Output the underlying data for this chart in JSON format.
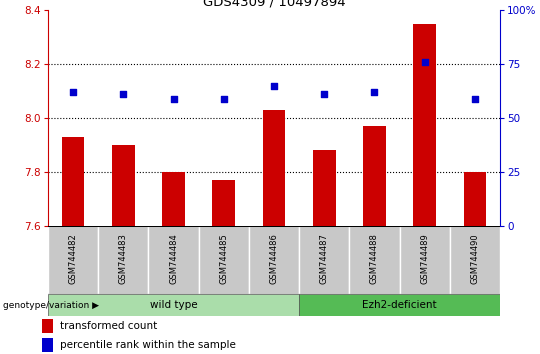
{
  "title": "GDS4309 / 10497894",
  "samples": [
    "GSM744482",
    "GSM744483",
    "GSM744484",
    "GSM744485",
    "GSM744486",
    "GSM744487",
    "GSM744488",
    "GSM744489",
    "GSM744490"
  ],
  "transformed_counts": [
    7.93,
    7.9,
    7.8,
    7.77,
    8.03,
    7.88,
    7.97,
    8.35,
    7.8
  ],
  "percentile_ranks": [
    62,
    61,
    59,
    59,
    65,
    61,
    62,
    76,
    59
  ],
  "ylim_left": [
    7.6,
    8.4
  ],
  "ylim_right": [
    0,
    100
  ],
  "yticks_left": [
    7.6,
    7.8,
    8.0,
    8.2,
    8.4
  ],
  "yticks_right": [
    0,
    25,
    50,
    75,
    100
  ],
  "bar_color": "#cc0000",
  "dot_color": "#0000cc",
  "tick_area_color": "#c8c8c8",
  "wild_type_color": "#aaddaa",
  "ezh2_color": "#55bb55",
  "wild_type_samples": [
    0,
    1,
    2,
    3,
    4
  ],
  "ezh2_samples": [
    5,
    6,
    7,
    8
  ],
  "wild_type_label": "wild type",
  "ezh2_label": "Ezh2-deficient",
  "genotype_label": "genotype/variation",
  "legend_bar_label": "transformed count",
  "legend_dot_label": "percentile rank within the sample",
  "left_axis_color": "#cc0000",
  "right_axis_color": "#0000cc"
}
